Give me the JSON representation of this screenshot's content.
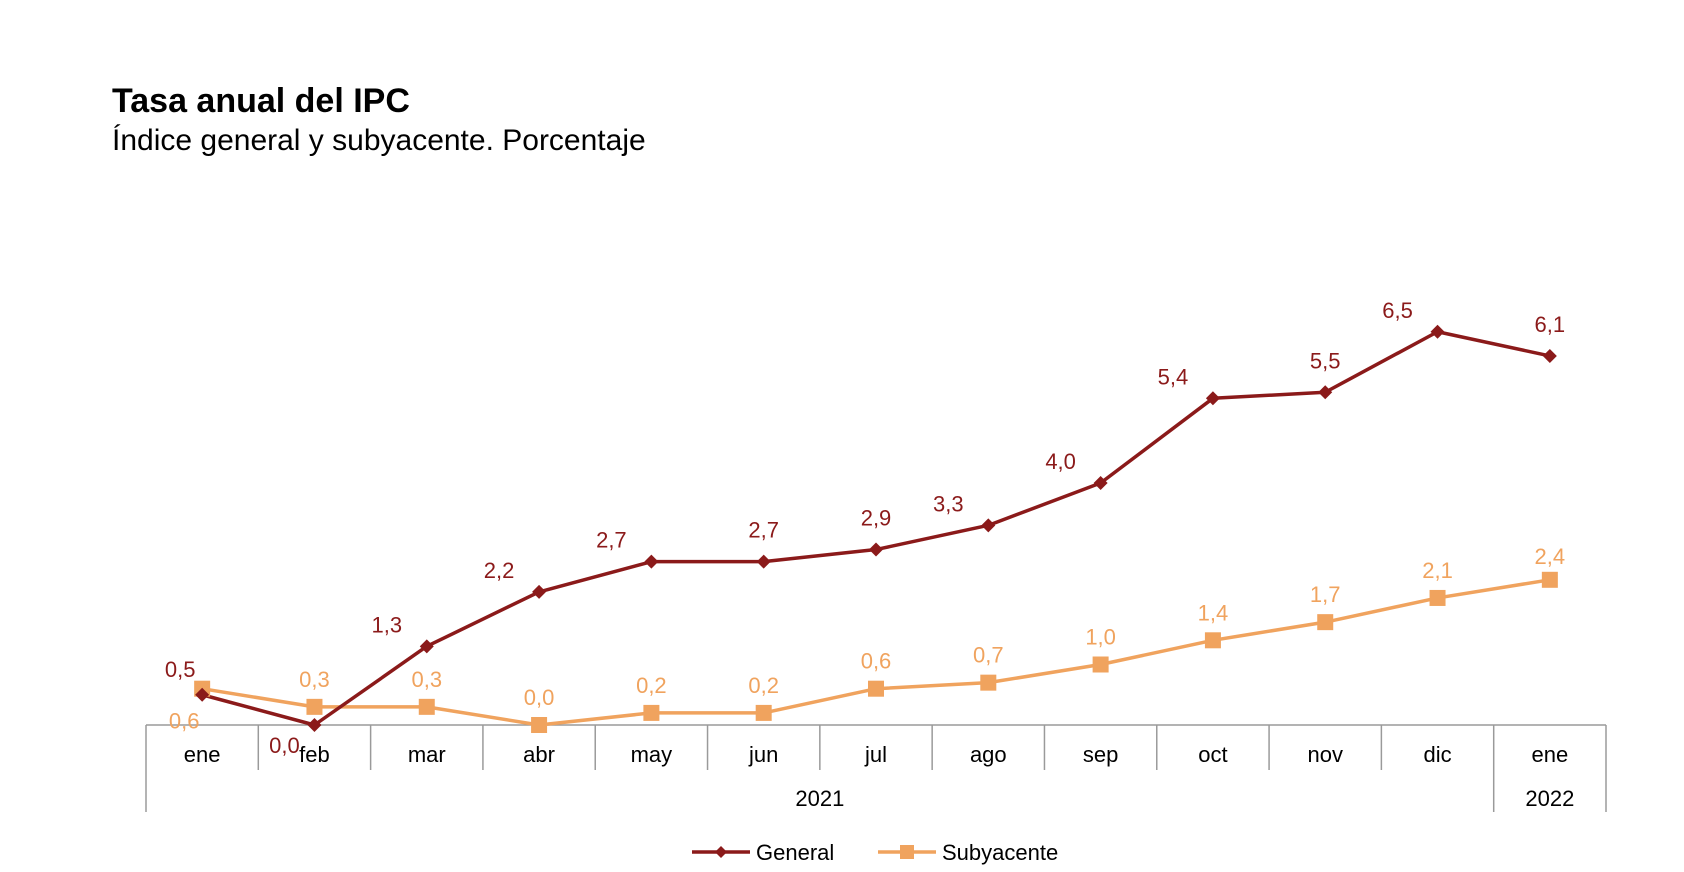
{
  "title": "Tasa anual del IPC",
  "subtitle": "Índice general y subyacente. Porcentaje",
  "chart_data": {
    "type": "line",
    "title": "Tasa anual del IPC",
    "subtitle": "Índice general y subyacente. Porcentaje",
    "xlabel": "",
    "ylabel": "",
    "categories": [
      "ene",
      "feb",
      "mar",
      "abr",
      "may",
      "jun",
      "jul",
      "ago",
      "sep",
      "oct",
      "nov",
      "dic",
      "ene"
    ],
    "years": [
      {
        "label": "2021",
        "from": 0,
        "to": 11
      },
      {
        "label": "2022",
        "from": 12,
        "to": 12
      }
    ],
    "ylim": [
      0,
      7
    ],
    "grid": false,
    "legend_position": "bottom",
    "series": [
      {
        "name": "General",
        "color": "#8b1a1a",
        "marker": "diamond",
        "values": [
          0.5,
          0.0,
          1.3,
          2.2,
          2.7,
          2.7,
          2.9,
          3.3,
          4.0,
          5.4,
          5.5,
          6.5,
          6.1
        ],
        "labels": [
          "0,5",
          "0,0",
          "1,3",
          "2,2",
          "2,7",
          "2,7",
          "2,9",
          "3,3",
          "4,0",
          "5,4",
          "5,5",
          "6,5",
          "6,1"
        ]
      },
      {
        "name": "Subyacente",
        "color": "#f0a35e",
        "marker": "square",
        "values": [
          0.6,
          0.3,
          0.3,
          0.0,
          0.2,
          0.2,
          0.6,
          0.7,
          1.0,
          1.4,
          1.7,
          2.1,
          2.4
        ],
        "labels": [
          "0,6",
          "0,3",
          "0,3",
          "0,0",
          "0,2",
          "0,2",
          "0,6",
          "0,7",
          "1,0",
          "1,4",
          "1,7",
          "2,1",
          "2,4"
        ]
      }
    ]
  }
}
